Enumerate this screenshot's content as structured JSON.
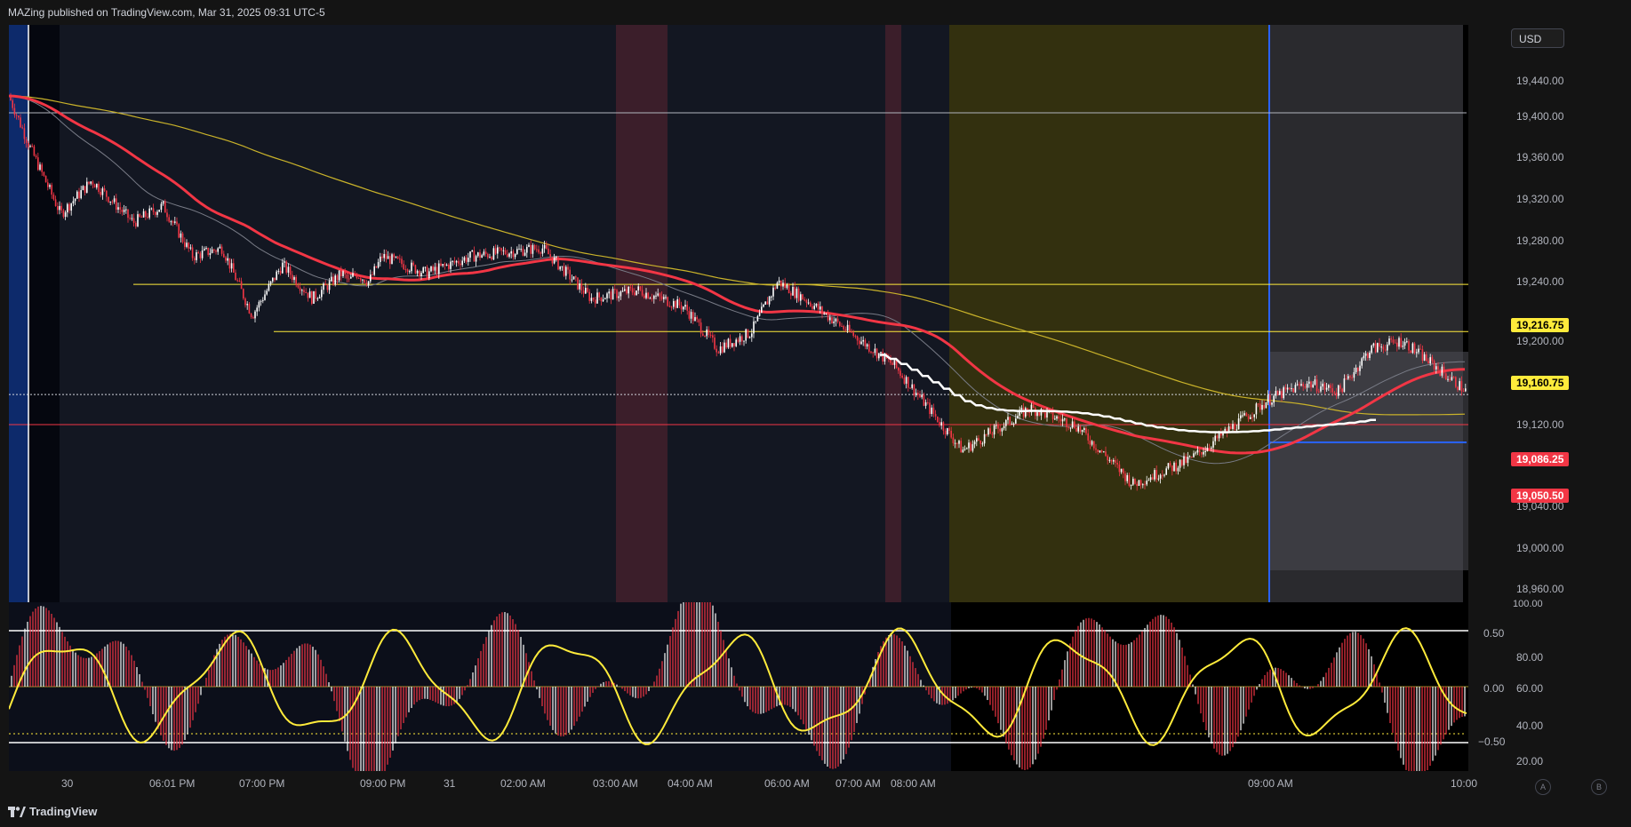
{
  "header": {
    "title": "MAZing published on TradingView.com, Mar 31, 2025 09:31 UTC-5"
  },
  "currency_button": "USD",
  "price_axis": {
    "ticks": [
      "19,440.00",
      "19,400.00",
      "19,360.00",
      "19,320.00",
      "19,280.00",
      "19,240.00",
      "19,200.00",
      "19,120.00",
      "19,040.00",
      "19,000.00",
      "18,960.00"
    ],
    "labels": [
      {
        "text": "19,216.75",
        "bg": "#ffeb3b",
        "fg": "#000000"
      },
      {
        "text": "19,160.75",
        "bg": "#ffeb3b",
        "fg": "#000000"
      },
      {
        "text": "19,086.25",
        "bg": "#f23645",
        "fg": "#ffffff"
      },
      {
        "text": "19,050.50",
        "bg": "#f23645",
        "fg": "#ffffff"
      }
    ]
  },
  "osc_axis": {
    "left_ticks": [
      "0.50",
      "0.00",
      "−0.50"
    ],
    "right_ticks": [
      "100.00",
      "80.00",
      "60.00",
      "40.00",
      "20.00"
    ]
  },
  "time_axis": [
    "30",
    "06:01 PM",
    "07:00 PM",
    "09:00 PM",
    "31",
    "02:00 AM",
    "03:00 AM",
    "04:00 AM",
    "06:00 AM",
    "07:00 AM",
    "08:00 AM",
    "09:00 AM",
    "10:00"
  ],
  "footer": {
    "brand": "TradingView",
    "btn_a": "A",
    "btn_b": "B"
  },
  "colors": {
    "bull": "#ffffff",
    "bear": "#f23645",
    "ma_red": "#f23645",
    "ma_yellow": "#c9b22a",
    "level_yellow": "#ffeb3b",
    "blue": "#2962ff"
  },
  "chart_data": {
    "type": "candlestick",
    "symbol_currency": "USD",
    "ylim": [
      18960,
      19460
    ],
    "levels": [
      19420,
      19216.75,
      19160.75,
      19086.25,
      19050.5
    ],
    "close_path": [
      [
        "17:00",
        19440
      ],
      [
        "17:10",
        19380
      ],
      [
        "17:25",
        19300
      ],
      [
        "17:40",
        19340
      ],
      [
        "18:00",
        19290
      ],
      [
        "18:20",
        19310
      ],
      [
        "18:40",
        19250
      ],
      [
        "19:00",
        19260
      ],
      [
        "19:30",
        19180
      ],
      [
        "20:00",
        19240
      ],
      [
        "20:30",
        19200
      ],
      [
        "21:00",
        19230
      ],
      [
        "21:30",
        19220
      ],
      [
        "22:00",
        19230
      ],
      [
        "23:00",
        19220
      ],
      [
        "00:00",
        19250
      ],
      [
        "01:00",
        19230
      ],
      [
        "02:00",
        19250
      ],
      [
        "03:00",
        19260
      ],
      [
        "03:30",
        19230
      ],
      [
        "04:00",
        19200
      ],
      [
        "05:00",
        19210
      ],
      [
        "06:00",
        19190
      ],
      [
        "06:30",
        19140
      ],
      [
        "07:00",
        19160
      ],
      [
        "07:30",
        19220
      ],
      [
        "08:00",
        19200
      ],
      [
        "08:20",
        19120
      ],
      [
        "08:35",
        19020
      ],
      [
        "08:50",
        19070
      ],
      [
        "09:00",
        19050
      ],
      [
        "09:15",
        18980
      ],
      [
        "09:30",
        19010
      ],
      [
        "09:50",
        19080
      ],
      [
        "10:00",
        19100
      ],
      [
        "10:20",
        19090
      ],
      [
        "10:40",
        19140
      ],
      [
        "11:00",
        19150
      ],
      [
        "11:20",
        19120
      ],
      [
        "11:40",
        19090
      ]
    ]
  }
}
